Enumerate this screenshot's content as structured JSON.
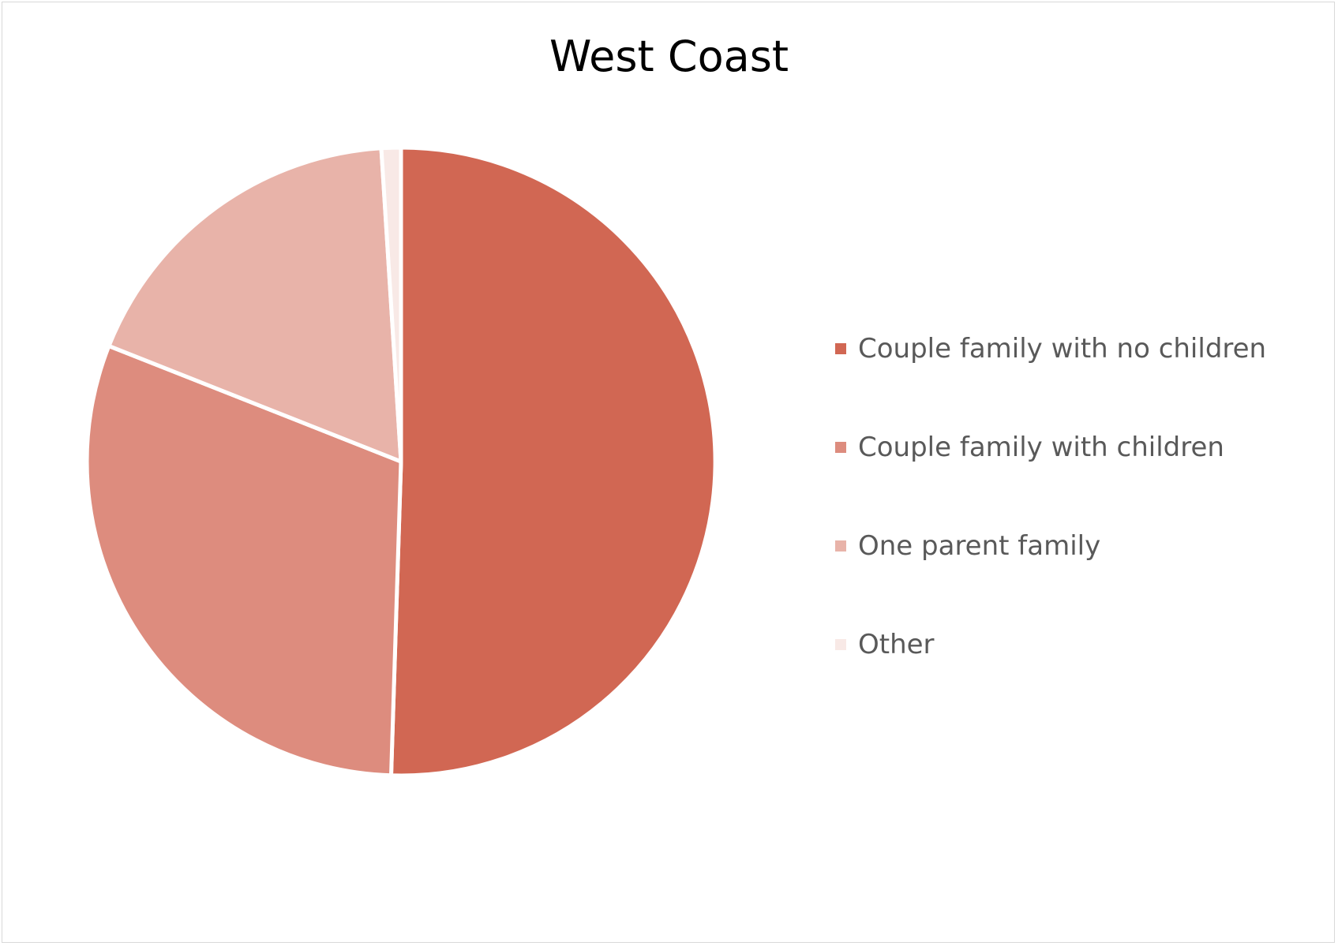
{
  "chart_data": {
    "type": "pie",
    "title": "West Coast",
    "categories": [
      "Couple family with no children",
      "Couple family with children",
      "One parent family",
      "Other"
    ],
    "values": [
      50.5,
      30.5,
      18.0,
      1.0
    ],
    "colors": [
      "#d16753",
      "#dd8c7e",
      "#e8b3a9",
      "#f8e9e6"
    ],
    "legend_position": "right"
  }
}
